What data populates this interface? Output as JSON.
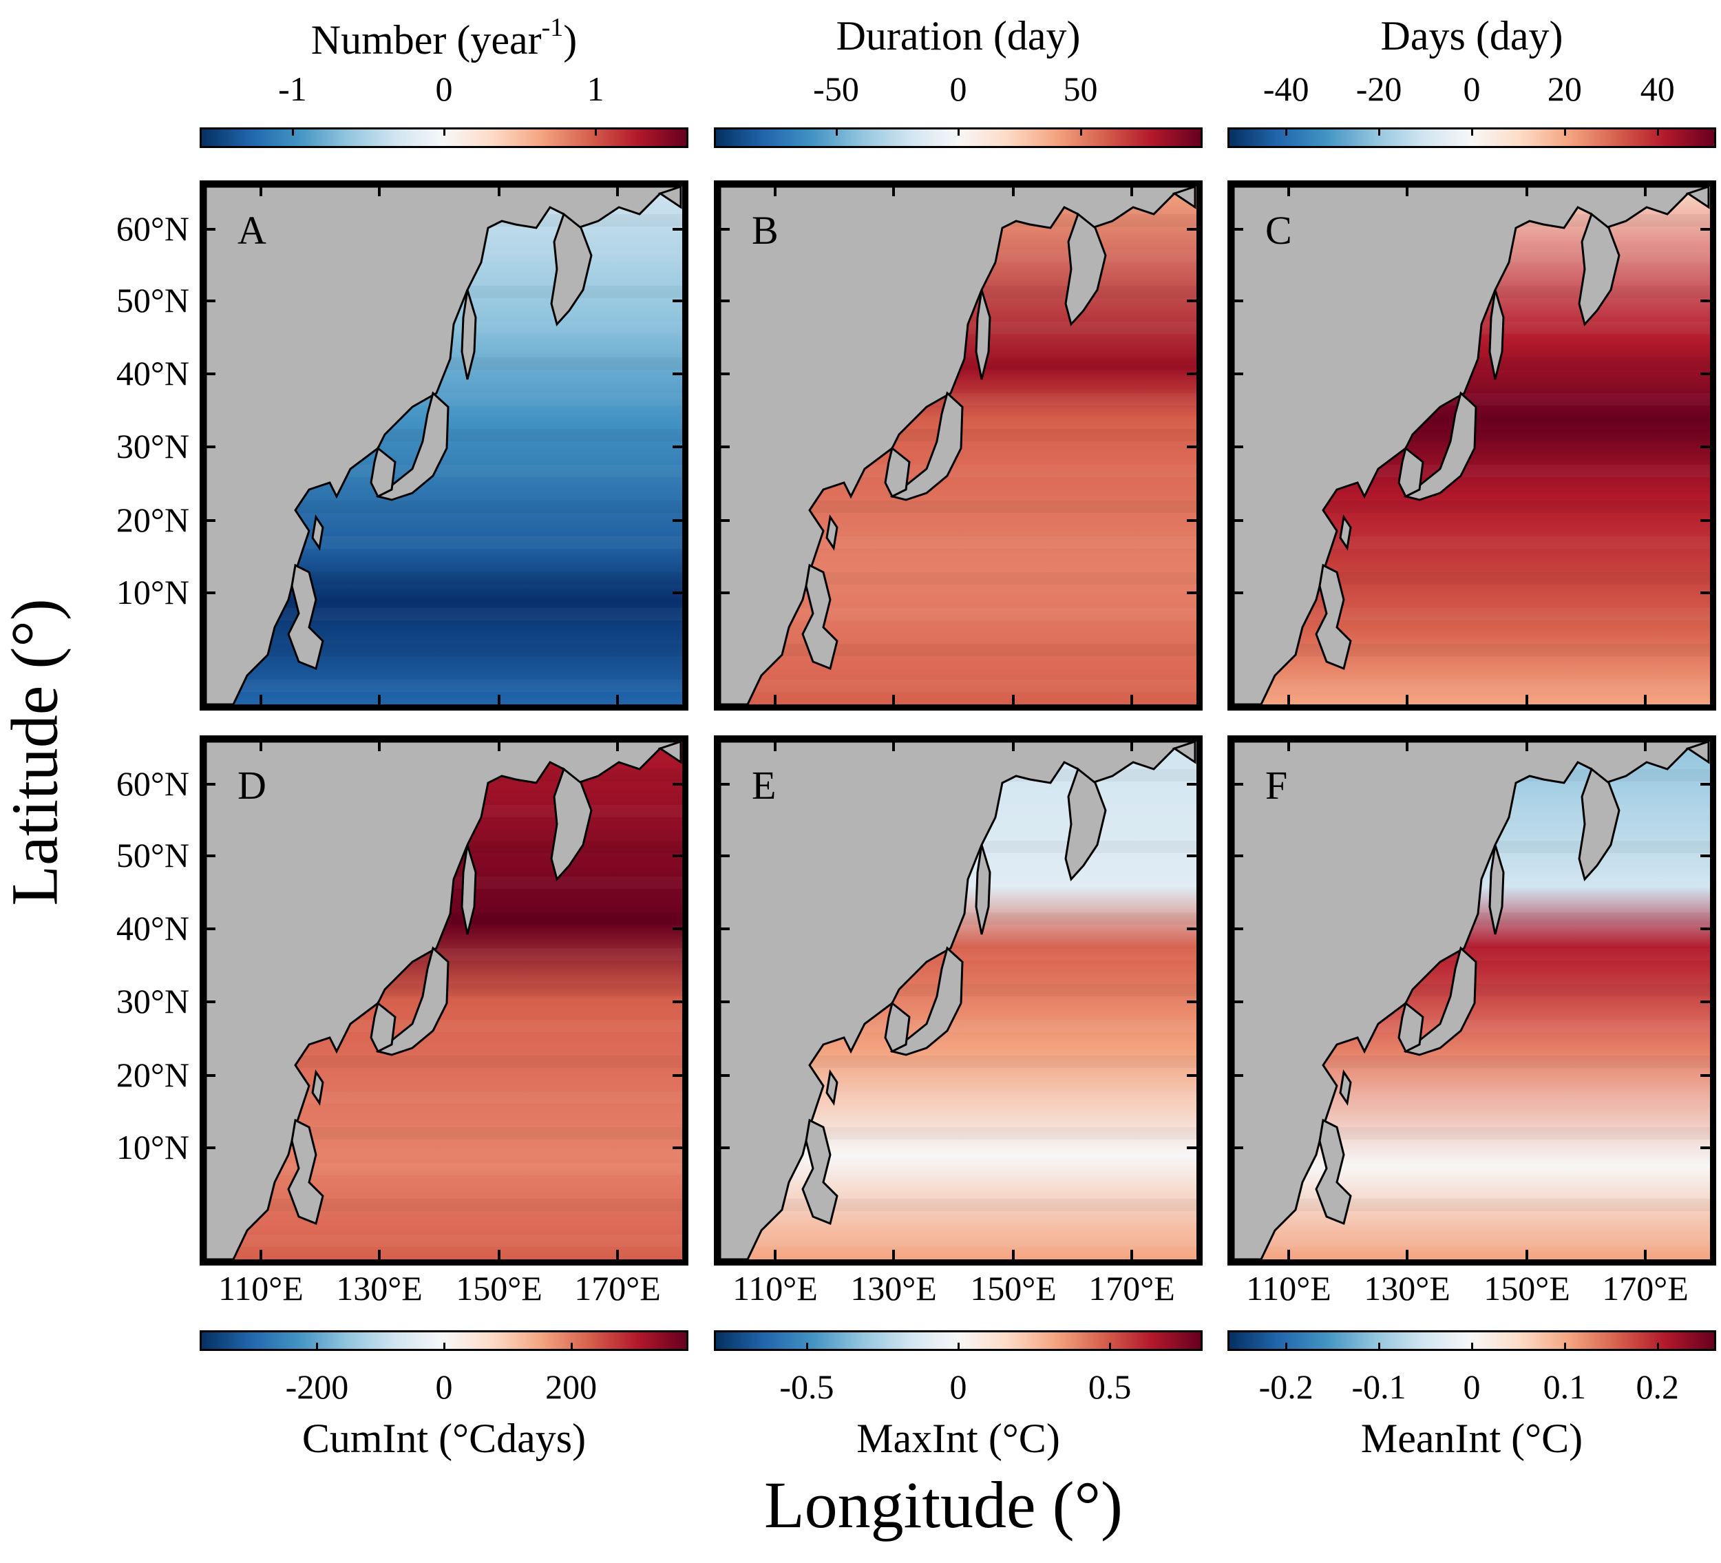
{
  "axes": {
    "ylabel": "Latitude (°)",
    "xlabel": "Longitude (°)",
    "lat_ticks": [
      "60°N",
      "50°N",
      "40°N",
      "30°N",
      "20°N",
      "10°N"
    ],
    "lon_ticks": [
      "110°E",
      "130°E",
      "150°E",
      "170°E"
    ]
  },
  "colors": {
    "diverging": [
      "#053061",
      "#2166ac",
      "#4393c3",
      "#92c5de",
      "#d1e5f0",
      "#f7f7f7",
      "#fddbc7",
      "#f4a582",
      "#d6604d",
      "#b2182b",
      "#67001f"
    ],
    "land": "#b4b4b4"
  },
  "top_colorbars": [
    {
      "title": "Number (year",
      "superscript": "-1",
      "title_end": ")",
      "ticks": [
        "-1",
        "0",
        "1"
      ]
    },
    {
      "title": "Duration (day)",
      "superscript": "",
      "title_end": "",
      "ticks": [
        "-50",
        "0",
        "50"
      ]
    },
    {
      "title": "Days (day)",
      "superscript": "",
      "title_end": "",
      "ticks": [
        "-40",
        "-20",
        "0",
        "20",
        "40"
      ]
    }
  ],
  "bottom_colorbars": [
    {
      "title": "CumInt (°Cdays)",
      "ticks": [
        "-200",
        "0",
        "200"
      ]
    },
    {
      "title": "MaxInt (°C)",
      "ticks": [
        "-0.5",
        "0",
        "0.5"
      ]
    },
    {
      "title": "MeanInt (°C)",
      "ticks": [
        "-0.2",
        "-0.1",
        "0",
        "0.1",
        "0.2"
      ]
    }
  ],
  "panels": [
    {
      "letter": "A",
      "variable": "Number",
      "pattern": "mostly-negative"
    },
    {
      "letter": "B",
      "variable": "Duration",
      "pattern": "positive"
    },
    {
      "letter": "C",
      "variable": "Days",
      "pattern": "strong-positive"
    },
    {
      "letter": "D",
      "variable": "CumInt",
      "pattern": "positive"
    },
    {
      "letter": "E",
      "variable": "MaxInt",
      "pattern": "mixed-weak"
    },
    {
      "letter": "F",
      "variable": "MeanInt",
      "pattern": "mixed"
    }
  ]
}
